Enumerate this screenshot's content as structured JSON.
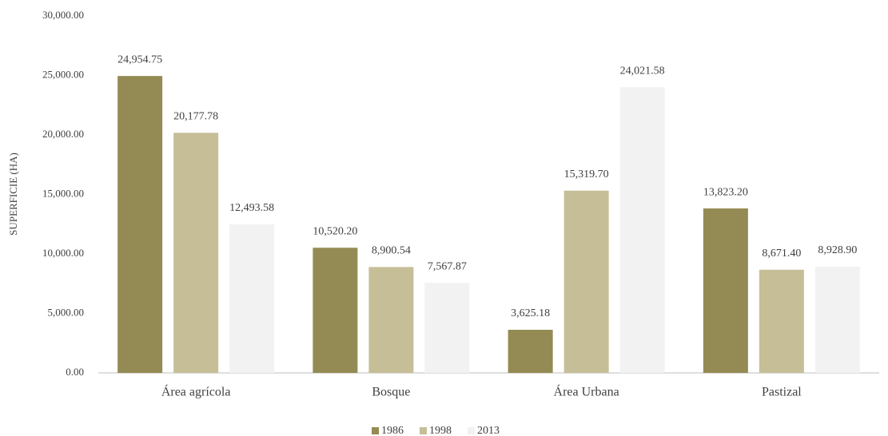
{
  "chart_data": {
    "type": "bar",
    "y_axis_label": "SUPERFICIE (HA)",
    "categories": [
      "Área agrícola",
      "Bosque",
      "Área Urbana",
      "Pastizal"
    ],
    "series": [
      {
        "name": "1986",
        "color": "#948b54",
        "values": [
          24954.75,
          10520.2,
          3625.18,
          13823.2
        ],
        "value_labels": [
          "24,954.75",
          "10,520.20",
          "3,625.18",
          "13,823.20"
        ]
      },
      {
        "name": "1998",
        "color": "#c5be97",
        "values": [
          20177.78,
          8900.54,
          15319.7,
          8671.4
        ],
        "value_labels": [
          "20,177.78",
          "8,900.54",
          "15,319.70",
          "8,671.40"
        ]
      },
      {
        "name": "2013",
        "color": "#f2f2f2",
        "values": [
          12493.58,
          7567.87,
          24021.58,
          8928.9
        ],
        "value_labels": [
          "12,493.58",
          "7,567.87",
          "24,021.58",
          "8,928.90"
        ]
      }
    ],
    "ylim": [
      0,
      30000
    ],
    "yticks": [
      {
        "value": 0,
        "label": "0.00"
      },
      {
        "value": 5000,
        "label": "5,000.00"
      },
      {
        "value": 10000,
        "label": "10,000.00"
      },
      {
        "value": 15000,
        "label": "15,000.00"
      },
      {
        "value": 20000,
        "label": "20,000.00"
      },
      {
        "value": 25000,
        "label": "25,000.00"
      },
      {
        "value": 30000,
        "label": "30,000.00"
      }
    ],
    "grid": false,
    "legend": "bottom"
  }
}
